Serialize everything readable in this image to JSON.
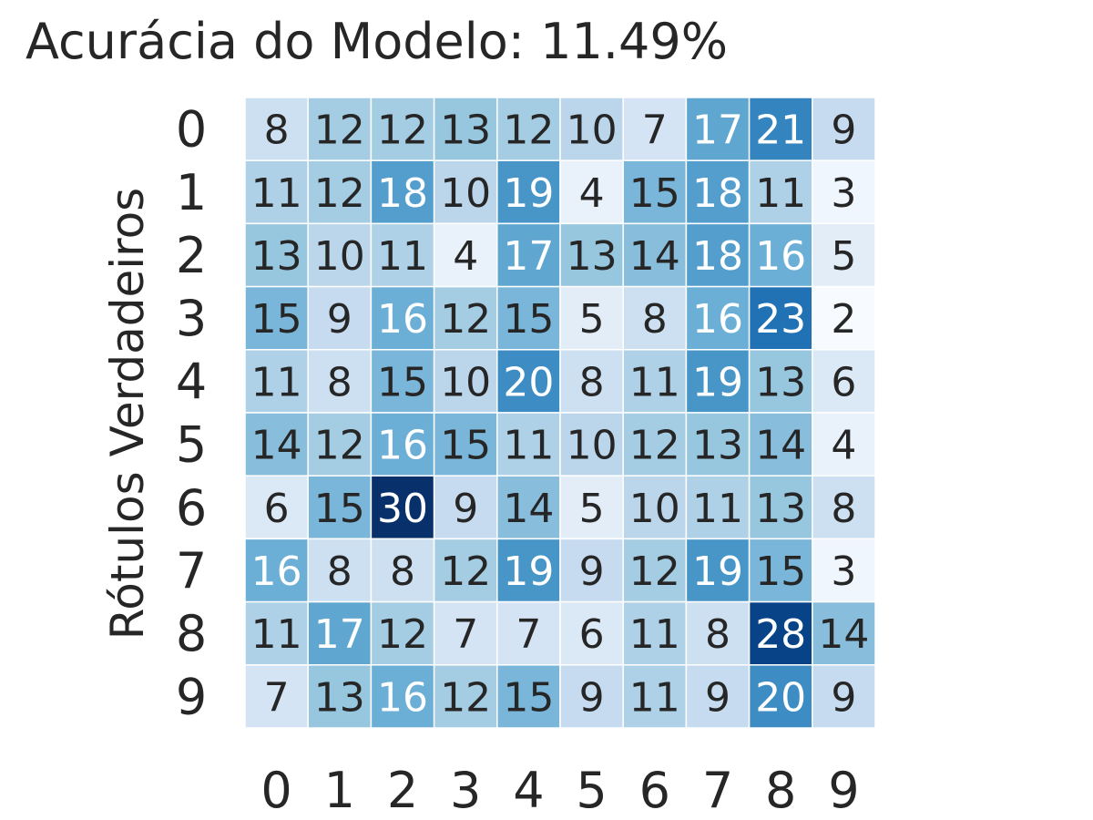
{
  "chart_data": {
    "type": "heatmap",
    "title": "Acurácia do Modelo: 11.49%",
    "ylabel": "Rótulos Verdadeiros",
    "xlabel": "",
    "x_categories": [
      "0",
      "1",
      "2",
      "3",
      "4",
      "5",
      "6",
      "7",
      "8",
      "9"
    ],
    "y_categories": [
      "0",
      "1",
      "2",
      "3",
      "4",
      "5",
      "6",
      "7",
      "8",
      "9"
    ],
    "values": [
      [
        8,
        12,
        12,
        13,
        12,
        10,
        7,
        17,
        21,
        9
      ],
      [
        11,
        12,
        18,
        10,
        19,
        4,
        15,
        18,
        11,
        3
      ],
      [
        13,
        10,
        11,
        4,
        17,
        13,
        14,
        18,
        16,
        5
      ],
      [
        15,
        9,
        16,
        12,
        15,
        5,
        8,
        16,
        23,
        2
      ],
      [
        11,
        8,
        15,
        10,
        20,
        8,
        11,
        19,
        13,
        6
      ],
      [
        14,
        12,
        16,
        15,
        11,
        10,
        12,
        13,
        14,
        4
      ],
      [
        6,
        15,
        30,
        9,
        14,
        5,
        10,
        11,
        13,
        8
      ],
      [
        16,
        8,
        8,
        12,
        19,
        9,
        12,
        19,
        15,
        3
      ],
      [
        11,
        17,
        12,
        7,
        7,
        6,
        11,
        8,
        28,
        14
      ],
      [
        7,
        13,
        16,
        12,
        15,
        9,
        11,
        9,
        20,
        9
      ]
    ],
    "colormap": "Blues",
    "vmin": 2,
    "vmax": 30,
    "colorbar": false,
    "annotations": true,
    "cell_border_color": "#ffffff",
    "text_color_dark": "#262626",
    "text_color_light": "#ffffff"
  }
}
